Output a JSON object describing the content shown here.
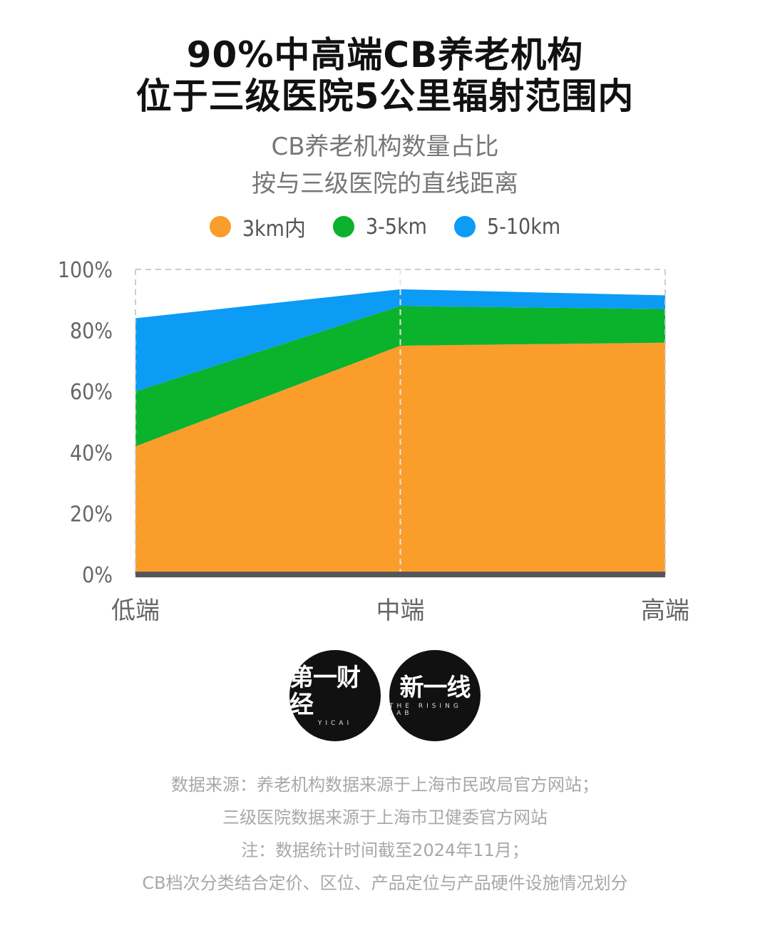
{
  "title": {
    "line1": "90%中高端CB养老机构",
    "line2": "位于三级医院5公里辐射范围内"
  },
  "subtitle": {
    "line1": "CB养老机构数量占比",
    "line2": "按与三级医院的直线距离"
  },
  "colors": {
    "within_3km": "#FA9D2B",
    "km_3_5": "#0BB22C",
    "km_5_10": "#0C9BF5",
    "baseline": "#55565a",
    "grid": "#cccccc"
  },
  "chart_data": {
    "type": "area",
    "stacked": true,
    "categories": [
      "低端",
      "中端",
      "高端"
    ],
    "series": [
      {
        "name": "3km内",
        "values": [
          42,
          75,
          76
        ]
      },
      {
        "name": "3-5km",
        "values": [
          18,
          13,
          11
        ]
      },
      {
        "name": "5-10km",
        "values": [
          24,
          5.5,
          4.5
        ]
      }
    ],
    "y_ticks": [
      "0%",
      "20%",
      "40%",
      "60%",
      "80%",
      "100%"
    ],
    "ylim": [
      0,
      100
    ],
    "legend_position": "top"
  },
  "logos": {
    "yicai": {
      "main": "第一财经",
      "sub": "YICAI"
    },
    "rising": {
      "main": "新一线",
      "sub": "THE RISING LAB"
    }
  },
  "footnotes": [
    "数据来源：养老机构数据来源于上海市民政局官方网站；",
    "三级医院数据来源于上海市卫健委官方网站",
    "注：数据统计时间截至2024年11月；",
    "CB档次分类结合定价、区位、产品定位与产品硬件设施情况划分"
  ]
}
